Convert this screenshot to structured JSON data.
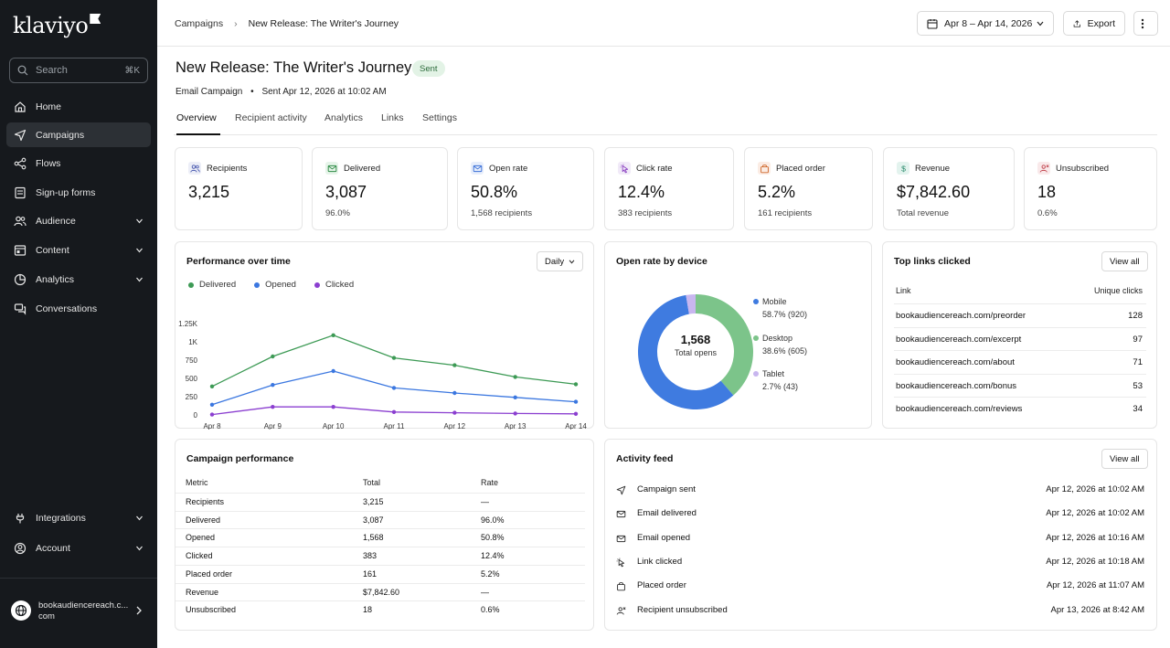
{
  "sidebar": {
    "logo": "klaviyo",
    "search_placeholder": "Search",
    "search_shortcut": "⌘K",
    "items": [
      {
        "label": "Home",
        "icon": "home-icon",
        "chevron": false
      },
      {
        "label": "Campaigns",
        "icon": "send-icon",
        "chevron": false,
        "active": true
      },
      {
        "label": "Flows",
        "icon": "flows-icon",
        "chevron": false
      },
      {
        "label": "Sign-up forms",
        "icon": "form-icon",
        "chevron": false
      },
      {
        "label": "Audience",
        "icon": "users-icon",
        "chevron": true
      },
      {
        "label": "Content",
        "icon": "content-icon",
        "chevron": true
      },
      {
        "label": "Analytics",
        "icon": "analytics-icon",
        "chevron": true
      },
      {
        "label": "Conversations",
        "icon": "chat-icon",
        "chevron": false
      }
    ],
    "bottom_items": [
      {
        "label": "Integrations",
        "icon": "integrations-icon"
      },
      {
        "label": "Account",
        "icon": "account-icon"
      }
    ],
    "account_name": "bookaudiencereach.c...com"
  },
  "topbar": {
    "breadcrumb_root": "Campaigns",
    "breadcrumb_current": "New Release: The Writer's Journey",
    "date_range": "Apr 8 – Apr 14, 2026",
    "export_label": "Export"
  },
  "header": {
    "title": "New Release: The Writer's Journey",
    "status": "Sent",
    "campaign_type": "Email Campaign",
    "sent_info": "Sent Apr 12, 2026 at 10:02 AM"
  },
  "tabs": [
    "Overview",
    "Recipient activity",
    "Analytics",
    "Links",
    "Settings"
  ],
  "kpis": [
    {
      "label": "Recipients",
      "value": "3,215",
      "sub": "",
      "icon": "users-icon",
      "bg": "#eceef7",
      "fg": "#4b5bb0"
    },
    {
      "label": "Delivered",
      "value": "3,087",
      "sub": "96.0%",
      "icon": "mail-icon",
      "bg": "#e6f4e9",
      "fg": "#2e8a45"
    },
    {
      "label": "Open rate",
      "value": "50.8%",
      "sub": "1,568 recipients",
      "icon": "mail-open-icon",
      "bg": "#e7eefb",
      "fg": "#3a6fd8"
    },
    {
      "label": "Click rate",
      "value": "12.4%",
      "sub": "383 recipients",
      "icon": "cursor-icon",
      "bg": "#f1eaf8",
      "fg": "#8a3fc0"
    },
    {
      "label": "Placed order",
      "value": "5.2%",
      "sub": "161 recipients",
      "icon": "bag-icon",
      "bg": "#fbece4",
      "fg": "#d06a2e"
    },
    {
      "label": "Revenue",
      "value": "$7,842.60",
      "sub": "Total revenue",
      "icon": "dollar-icon",
      "bg": "#e3f3ee",
      "fg": "#2a8a6b"
    },
    {
      "label": "Unsubscribed",
      "value": "18",
      "sub": "0.6%",
      "icon": "user-x-icon",
      "bg": "#f9e9ea",
      "fg": "#c2454f"
    }
  ],
  "performance": {
    "title": "Performance over time",
    "granularity": "Daily"
  },
  "chart_data": {
    "type": "line",
    "title": "Performance over time",
    "x": [
      "Apr 8",
      "Apr 9",
      "Apr 10",
      "Apr 11",
      "Apr 12",
      "Apr 13",
      "Apr 14"
    ],
    "y_ticks": [
      "0",
      "250",
      "500",
      "750",
      "1K",
      "1.25K"
    ],
    "ylim": [
      0,
      1250
    ],
    "series": [
      {
        "name": "Delivered",
        "color": "#3d9a55",
        "values": [
          390,
          800,
          1090,
          780,
          680,
          520,
          420
        ]
      },
      {
        "name": "Opened",
        "color": "#3b77e0",
        "values": [
          140,
          410,
          600,
          370,
          300,
          240,
          180
        ]
      },
      {
        "name": "Clicked",
        "color": "#8b3fd0",
        "values": [
          5,
          110,
          110,
          40,
          30,
          20,
          15
        ]
      }
    ]
  },
  "device": {
    "title": "Open rate by device",
    "total": "1,568",
    "total_label": "Total opens",
    "segments": [
      {
        "name": "Mobile",
        "detail": "58.7% (920)",
        "value": 58.7,
        "color": "#3f7be0"
      },
      {
        "name": "Desktop",
        "detail": "38.6% (605)",
        "value": 38.6,
        "color": "#7cc48a"
      },
      {
        "name": "Tablet",
        "detail": "2.7% (43)",
        "value": 2.7,
        "color": "#c8b6ef"
      }
    ]
  },
  "top_links": {
    "title": "Top links clicked",
    "view_all": "View all",
    "col_link": "Link",
    "col_clicks": "Unique clicks",
    "rows": [
      {
        "link": "bookaudiencereach.com/preorder",
        "clicks": "128"
      },
      {
        "link": "bookaudiencereach.com/excerpt",
        "clicks": "97"
      },
      {
        "link": "bookaudiencereach.com/about",
        "clicks": "71"
      },
      {
        "link": "bookaudiencereach.com/bonus",
        "clicks": "53"
      },
      {
        "link": "bookaudiencereach.com/reviews",
        "clicks": "34"
      }
    ]
  },
  "campaign_perf": {
    "title": "Campaign performance",
    "col_metric": "Metric",
    "col_total": "Total",
    "col_rate": "Rate",
    "rows": [
      {
        "metric": "Recipients",
        "total": "3,215",
        "rate": "—"
      },
      {
        "metric": "Delivered",
        "total": "3,087",
        "rate": "96.0%"
      },
      {
        "metric": "Opened",
        "total": "1,568",
        "rate": "50.8%"
      },
      {
        "metric": "Clicked",
        "total": "383",
        "rate": "12.4%"
      },
      {
        "metric": "Placed order",
        "total": "161",
        "rate": "5.2%"
      },
      {
        "metric": "Revenue",
        "total": "$7,842.60",
        "rate": "—"
      },
      {
        "metric": "Unsubscribed",
        "total": "18",
        "rate": "0.6%"
      }
    ]
  },
  "activity": {
    "title": "Activity feed",
    "view_all": "View all",
    "rows": [
      {
        "event": "Campaign sent",
        "time": "Apr 12, 2026 at 10:02 AM",
        "icon": "send-icon"
      },
      {
        "event": "Email delivered",
        "time": "Apr 12, 2026 at 10:02 AM",
        "icon": "mail-icon"
      },
      {
        "event": "Email opened",
        "time": "Apr 12, 2026 at 10:16 AM",
        "icon": "mail-open-icon"
      },
      {
        "event": "Link clicked",
        "time": "Apr 12, 2026 at 10:18 AM",
        "icon": "cursor-icon"
      },
      {
        "event": "Placed order",
        "time": "Apr 12, 2026 at 11:07 AM",
        "icon": "bag-icon"
      },
      {
        "event": "Recipient unsubscribed",
        "time": "Apr 13, 2026 at 8:42 AM",
        "icon": "user-x-icon"
      }
    ]
  }
}
